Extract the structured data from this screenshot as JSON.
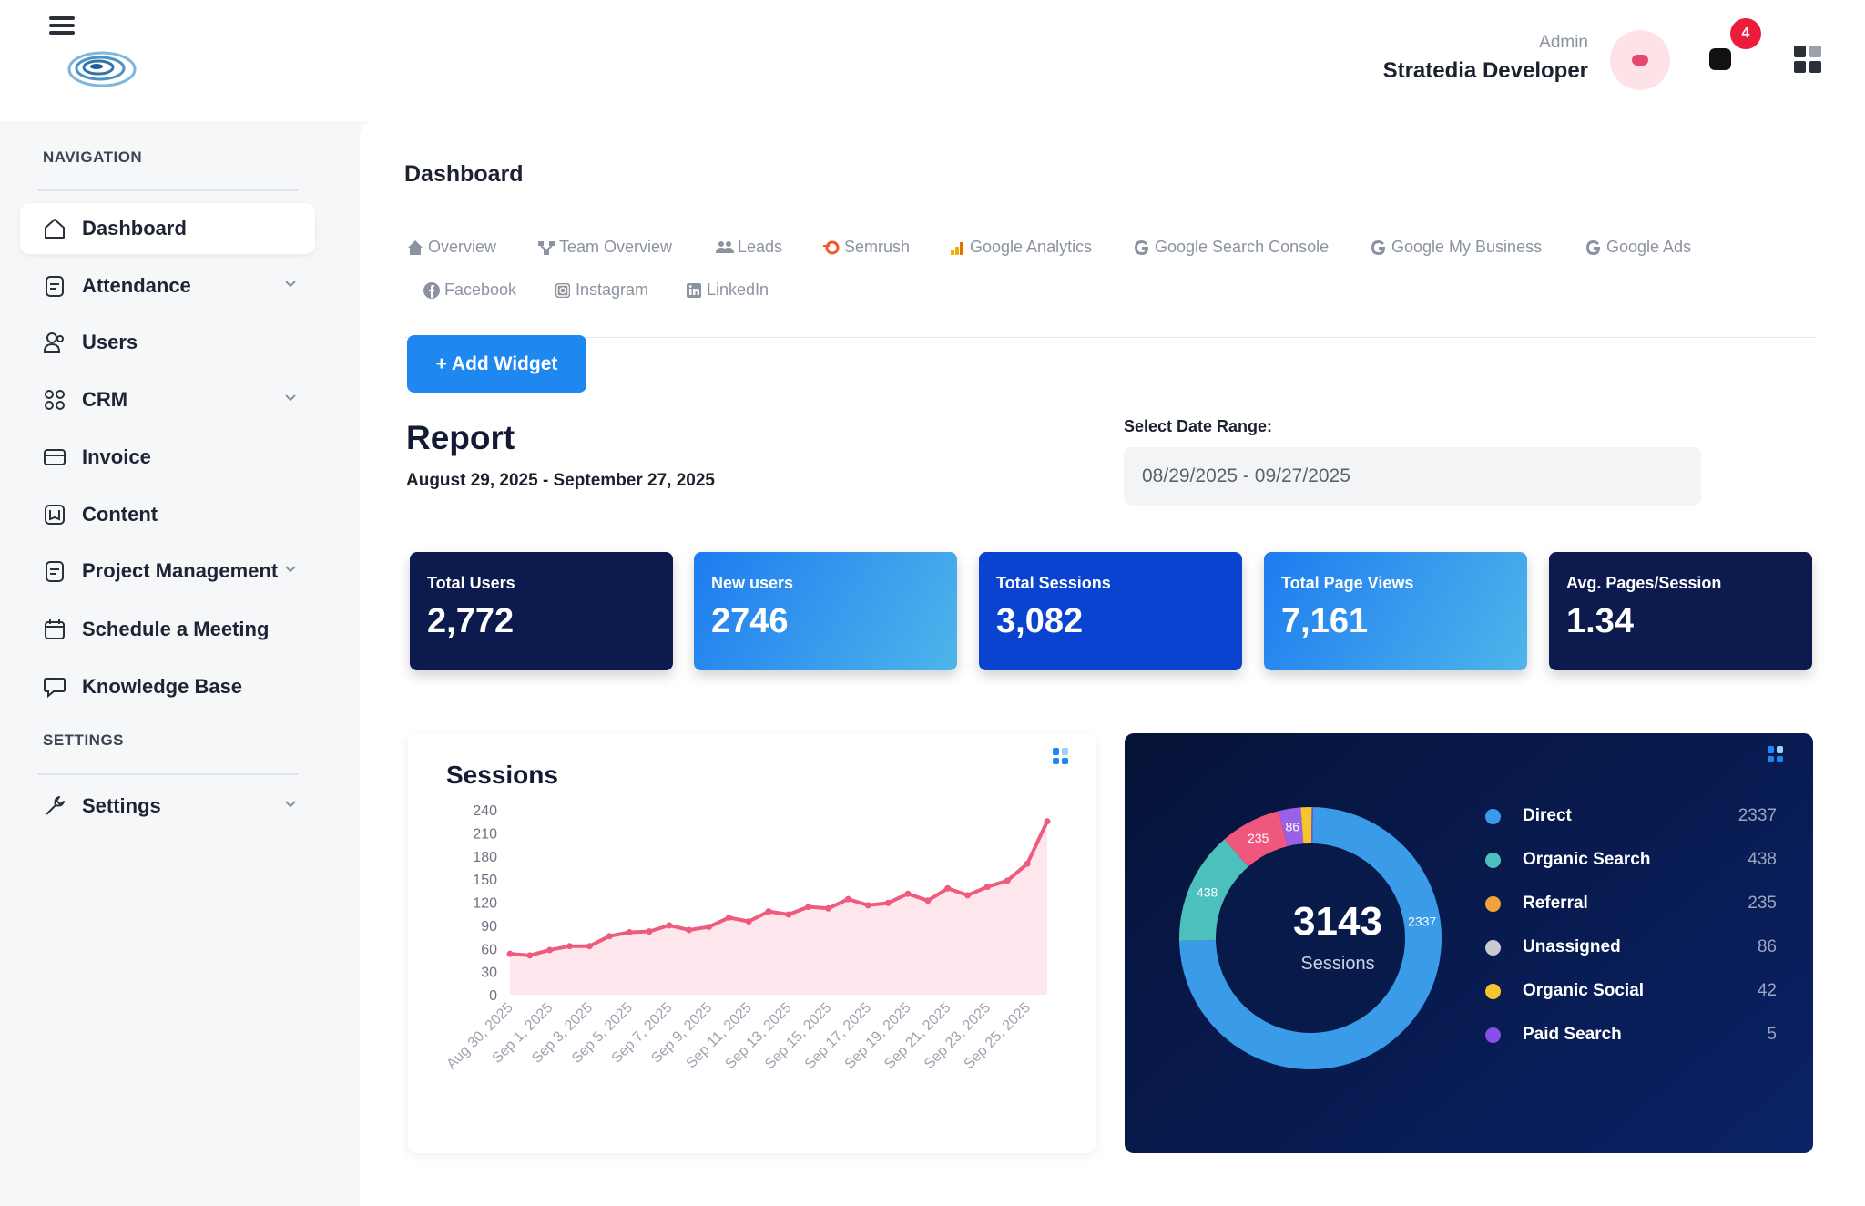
{
  "header": {
    "user_role": "Admin",
    "user_name": "Stratedia Developer",
    "notification_count": "4",
    "accent_color": "#ec1c3c"
  },
  "sidebar": {
    "nav_heading": "NAVIGATION",
    "settings_heading": "SETTINGS",
    "items": [
      {
        "label": "Dashboard",
        "icon": "home-icon"
      },
      {
        "label": "Attendance",
        "icon": "clipboard-icon"
      },
      {
        "label": "Users",
        "icon": "users-icon"
      },
      {
        "label": "CRM",
        "icon": "crm-icon"
      },
      {
        "label": "Invoice",
        "icon": "card-icon"
      },
      {
        "label": "Content",
        "icon": "book-icon"
      },
      {
        "label": "Project Management",
        "icon": "clipboard-icon"
      },
      {
        "label": "Schedule a Meeting",
        "icon": "calendar-icon"
      },
      {
        "label": "Knowledge Base",
        "icon": "message-icon"
      }
    ],
    "settings_item": {
      "label": "Settings",
      "icon": "wrench-icon"
    }
  },
  "main": {
    "page_title": "Dashboard",
    "tabs": [
      {
        "label": "Overview",
        "icon": "home-icon"
      },
      {
        "label": "Team Overview",
        "icon": "network-icon"
      },
      {
        "label": "Leads",
        "icon": "users-icon"
      },
      {
        "label": "Semrush",
        "icon": "semrush-icon"
      },
      {
        "label": "Google Analytics",
        "icon": "analytics-icon"
      },
      {
        "label": "Google Search Console",
        "icon": "google-icon"
      },
      {
        "label": "Google My Business",
        "icon": "google-icon"
      },
      {
        "label": "Google Ads",
        "icon": "google-icon"
      },
      {
        "label": "Facebook",
        "icon": "facebook-icon"
      },
      {
        "label": "Instagram",
        "icon": "instagram-icon"
      },
      {
        "label": "LinkedIn",
        "icon": "linkedin-icon"
      }
    ],
    "add_widget_label": "+ Add Widget",
    "report_title": "Report",
    "report_range": "August 29, 2025 - September 27, 2025",
    "date_range_label": "Select Date Range:",
    "date_range_value": "08/29/2025 - 09/27/2025"
  },
  "stats": [
    {
      "label": "Total Users",
      "value": "2,772"
    },
    {
      "label": "New users",
      "value": "2746"
    },
    {
      "label": "Total Sessions",
      "value": "3,082"
    },
    {
      "label": "Total Page Views",
      "value": "7,161"
    },
    {
      "label": "Avg. Pages/Session",
      "value": "1.34"
    }
  ],
  "chart_data": [
    {
      "type": "area",
      "title": "Sessions",
      "ylim": [
        0,
        240
      ],
      "yticks": [
        "240",
        "210",
        "180",
        "150",
        "120",
        "90",
        "60",
        "30",
        "0"
      ],
      "xticks": [
        "Aug 30, 2025",
        "Sep 1, 2025",
        "Sep 3, 2025",
        "Sep 5, 2025",
        "Sep 7, 2025",
        "Sep 9, 2025",
        "Sep 11, 2025",
        "Sep 13, 2025",
        "Sep 15, 2025",
        "Sep 17, 2025",
        "Sep 19, 2025",
        "Sep 21, 2025",
        "Sep 23, 2025",
        "Sep 25, 2025"
      ],
      "series": [
        {
          "color": "#ef5b7c",
          "values": [
            53,
            51,
            58,
            63,
            63,
            76,
            81,
            82,
            90,
            84,
            88,
            100,
            95,
            108,
            104,
            114,
            112,
            124,
            116,
            119,
            131,
            122,
            138,
            129,
            140,
            148,
            170,
            225
          ]
        }
      ]
    },
    {
      "type": "pie",
      "center_value": "3143",
      "center_label": "Sessions",
      "slices": [
        {
          "label": "Direct",
          "value": 2337,
          "display": "2337",
          "color": "#3a9be8"
        },
        {
          "label": "Organic Search",
          "value": 438,
          "display": "438",
          "color": "#4cc0bd"
        },
        {
          "label": "Referral",
          "value": 235,
          "display": "235",
          "color": "#f2a23a",
          "chart_color": "#f0577c"
        },
        {
          "label": "Unassigned",
          "value": 86,
          "display": "86",
          "color": "#c9cbd1",
          "chart_color": "#9a61e8"
        },
        {
          "label": "Organic Social",
          "value": 42,
          "display": "42",
          "color": "#f6c42c"
        },
        {
          "label": "Paid Search",
          "value": 5,
          "display": "5",
          "color": "#8a4fe6"
        }
      ]
    }
  ]
}
